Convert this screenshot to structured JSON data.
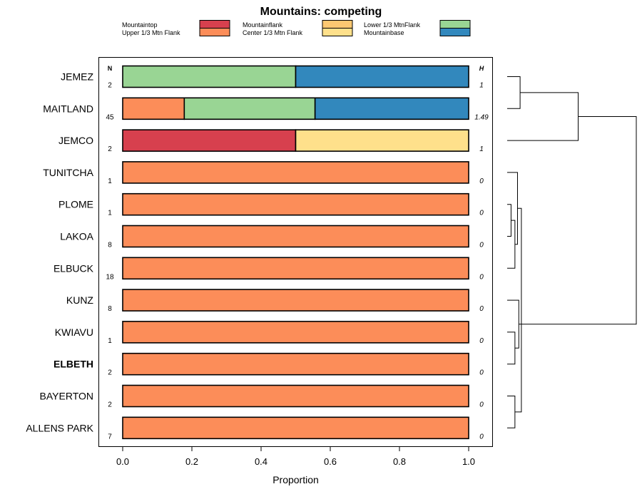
{
  "chart_data": {
    "type": "bar",
    "subtype": "stacked-horizontal-proportion",
    "title": "Mountains: competing",
    "xlabel": "Proportion",
    "xlim": [
      0,
      1
    ],
    "xticks": [
      "0.0",
      "0.2",
      "0.4",
      "0.6",
      "0.8",
      "1.0"
    ],
    "n_header": "N",
    "h_header": "H",
    "legend": [
      {
        "name": "Mountaintop",
        "color": "#d7404e"
      },
      {
        "name": "Upper 1/3 Mtn Flank",
        "color": "#fc8d59"
      },
      {
        "name": "Mountainflank",
        "color": "#fcc872"
      },
      {
        "name": "Center 1/3 Mtn Flank",
        "color": "#fee08b"
      },
      {
        "name": "Lower 1/3 MtnFlank",
        "color": "#99d594"
      },
      {
        "name": "Mountainbase",
        "color": "#3288bd"
      }
    ],
    "rows": [
      {
        "label": "JEMEZ",
        "bold": false,
        "n": "2",
        "h": "1",
        "segments": [
          {
            "cat": "Lower 1/3 MtnFlank",
            "value": 0.5
          },
          {
            "cat": "Mountainbase",
            "value": 0.5
          }
        ]
      },
      {
        "label": "MAITLAND",
        "bold": false,
        "n": "45",
        "h": "1.49",
        "segments": [
          {
            "cat": "Upper 1/3 Mtn Flank",
            "value": 0.178
          },
          {
            "cat": "Lower 1/3 MtnFlank",
            "value": 0.378
          },
          {
            "cat": "Mountainbase",
            "value": 0.444
          }
        ]
      },
      {
        "label": "JEMCO",
        "bold": false,
        "n": "2",
        "h": "1",
        "segments": [
          {
            "cat": "Mountaintop",
            "value": 0.5
          },
          {
            "cat": "Center 1/3 Mtn Flank",
            "value": 0.5
          }
        ]
      },
      {
        "label": "TUNITCHA",
        "bold": false,
        "n": "1",
        "h": "0",
        "segments": [
          {
            "cat": "Upper 1/3 Mtn Flank",
            "value": 1.0
          }
        ]
      },
      {
        "label": "PLOME",
        "bold": false,
        "n": "1",
        "h": "0",
        "segments": [
          {
            "cat": "Upper 1/3 Mtn Flank",
            "value": 1.0
          }
        ]
      },
      {
        "label": "LAKOA",
        "bold": false,
        "n": "8",
        "h": "0",
        "segments": [
          {
            "cat": "Upper 1/3 Mtn Flank",
            "value": 1.0
          }
        ]
      },
      {
        "label": "ELBUCK",
        "bold": false,
        "n": "18",
        "h": "0",
        "segments": [
          {
            "cat": "Upper 1/3 Mtn Flank",
            "value": 1.0
          }
        ]
      },
      {
        "label": "KUNZ",
        "bold": false,
        "n": "8",
        "h": "0",
        "segments": [
          {
            "cat": "Upper 1/3 Mtn Flank",
            "value": 1.0
          }
        ]
      },
      {
        "label": "KWIAVU",
        "bold": false,
        "n": "1",
        "h": "0",
        "segments": [
          {
            "cat": "Upper 1/3 Mtn Flank",
            "value": 1.0
          }
        ]
      },
      {
        "label": "ELBETH",
        "bold": true,
        "n": "2",
        "h": "0",
        "segments": [
          {
            "cat": "Upper 1/3 Mtn Flank",
            "value": 1.0
          }
        ]
      },
      {
        "label": "BAYERTON",
        "bold": false,
        "n": "2",
        "h": "0",
        "segments": [
          {
            "cat": "Upper 1/3 Mtn Flank",
            "value": 1.0
          }
        ]
      },
      {
        "label": "ALLENS PARK",
        "bold": false,
        "n": "7",
        "h": "0",
        "segments": [
          {
            "cat": "Upper 1/3 Mtn Flank",
            "value": 1.0
          }
        ]
      }
    ],
    "dendrogram": [
      {
        "a": 0,
        "b": 1,
        "height": 0.1
      },
      {
        "a": 4,
        "b": 5,
        "height": 0.03
      },
      {
        "a": 13,
        "b": 6,
        "height": 0.06
      },
      {
        "a": 8,
        "b": 9,
        "height": 0.06
      },
      {
        "a": 10,
        "b": 11,
        "height": 0.06
      },
      {
        "a": 12,
        "b": 2,
        "height": 0.55
      },
      {
        "a": 3,
        "b": 14,
        "height": 0.08
      },
      {
        "a": 7,
        "b": 15,
        "height": 0.09
      },
      {
        "a": 16,
        "b": 18,
        "height": 0.11
      },
      {
        "a": 17,
        "b": 19,
        "height": 1.0
      }
    ]
  }
}
